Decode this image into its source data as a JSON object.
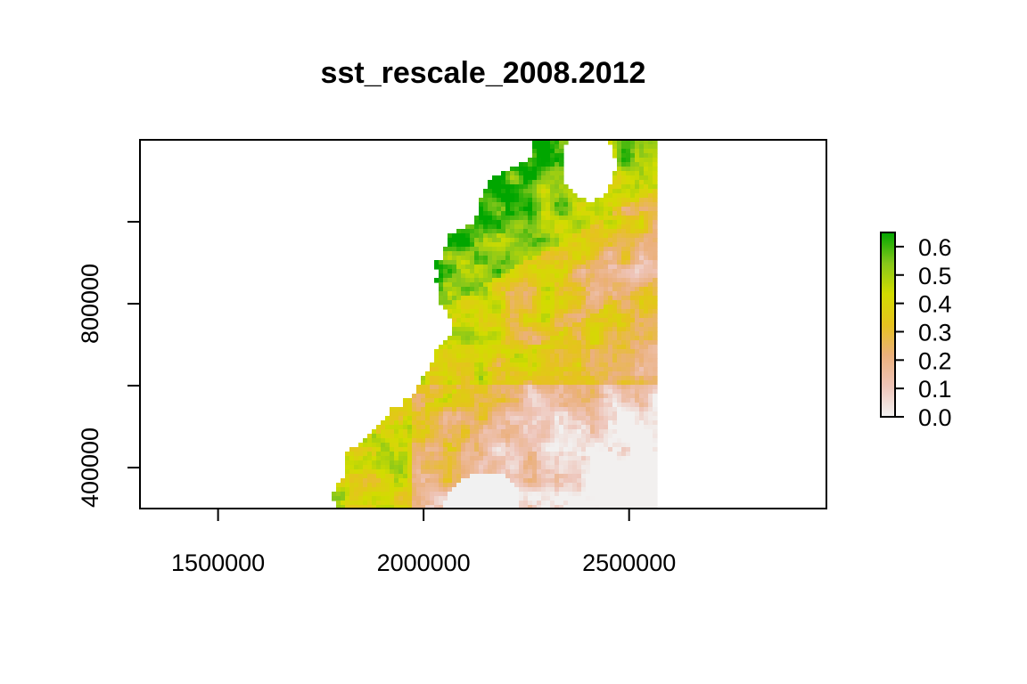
{
  "title": "sst_rescale_2008.2012",
  "chart_data": {
    "type": "heatmap",
    "title": "sst_rescale_2008.2012",
    "xlabel": "",
    "ylabel": "",
    "xlim": [
      1310000,
      2980000
    ],
    "ylim": [
      300000,
      1200000
    ],
    "x_ticks": [
      1500000,
      2000000,
      2500000
    ],
    "x_tick_labels": [
      "1500000",
      "2000000",
      "2500000"
    ],
    "y_ticks": [
      400000,
      600000,
      800000,
      1000000
    ],
    "y_tick_labels": [
      "400000",
      "",
      "800000",
      ""
    ],
    "raster_extent": {
      "xmin": 1660000,
      "xmax": 2560000,
      "ymin": 300000,
      "ymax": 1200000
    },
    "legend": {
      "placement": "right",
      "range": [
        0,
        0.65
      ],
      "ticks": [
        0.0,
        0.1,
        0.2,
        0.3,
        0.4,
        0.5,
        0.6
      ],
      "tick_labels": [
        "0.0",
        "0.1",
        "0.2",
        "0.3",
        "0.4",
        "0.5",
        "0.6"
      ],
      "colors": [
        "#f2f2f2",
        "#eec4b8",
        "#ebb07c",
        "#e6c21f",
        "#d2dc00",
        "#86c71a",
        "#00a600"
      ]
    }
  }
}
